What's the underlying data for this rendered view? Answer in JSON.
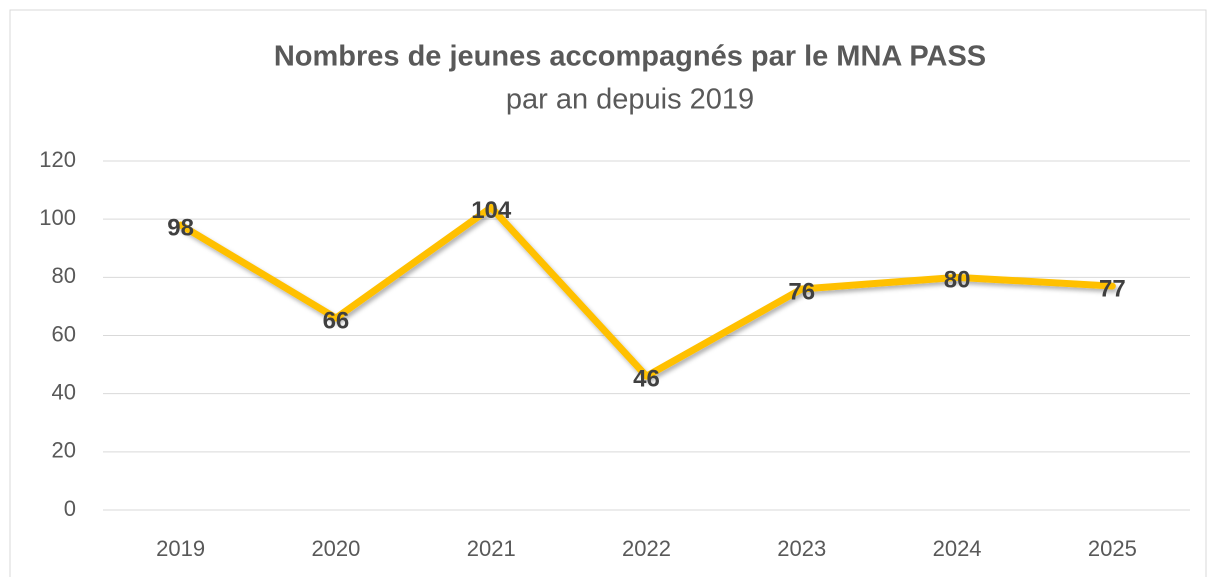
{
  "chart_data": {
    "type": "line",
    "title": "Nombres de jeunes accompagnés par le MNA PASS",
    "subtitle": "par an depuis 2019",
    "categories": [
      "2019",
      "2020",
      "2021",
      "2022",
      "2023",
      "2024",
      "2025"
    ],
    "values": [
      98,
      66,
      104,
      46,
      76,
      80,
      77
    ],
    "color": "#ffc000",
    "ylim": [
      0,
      120
    ],
    "yticks": [
      0,
      20,
      40,
      60,
      80,
      100,
      120
    ],
    "grid": true,
    "data_labels": true
  }
}
